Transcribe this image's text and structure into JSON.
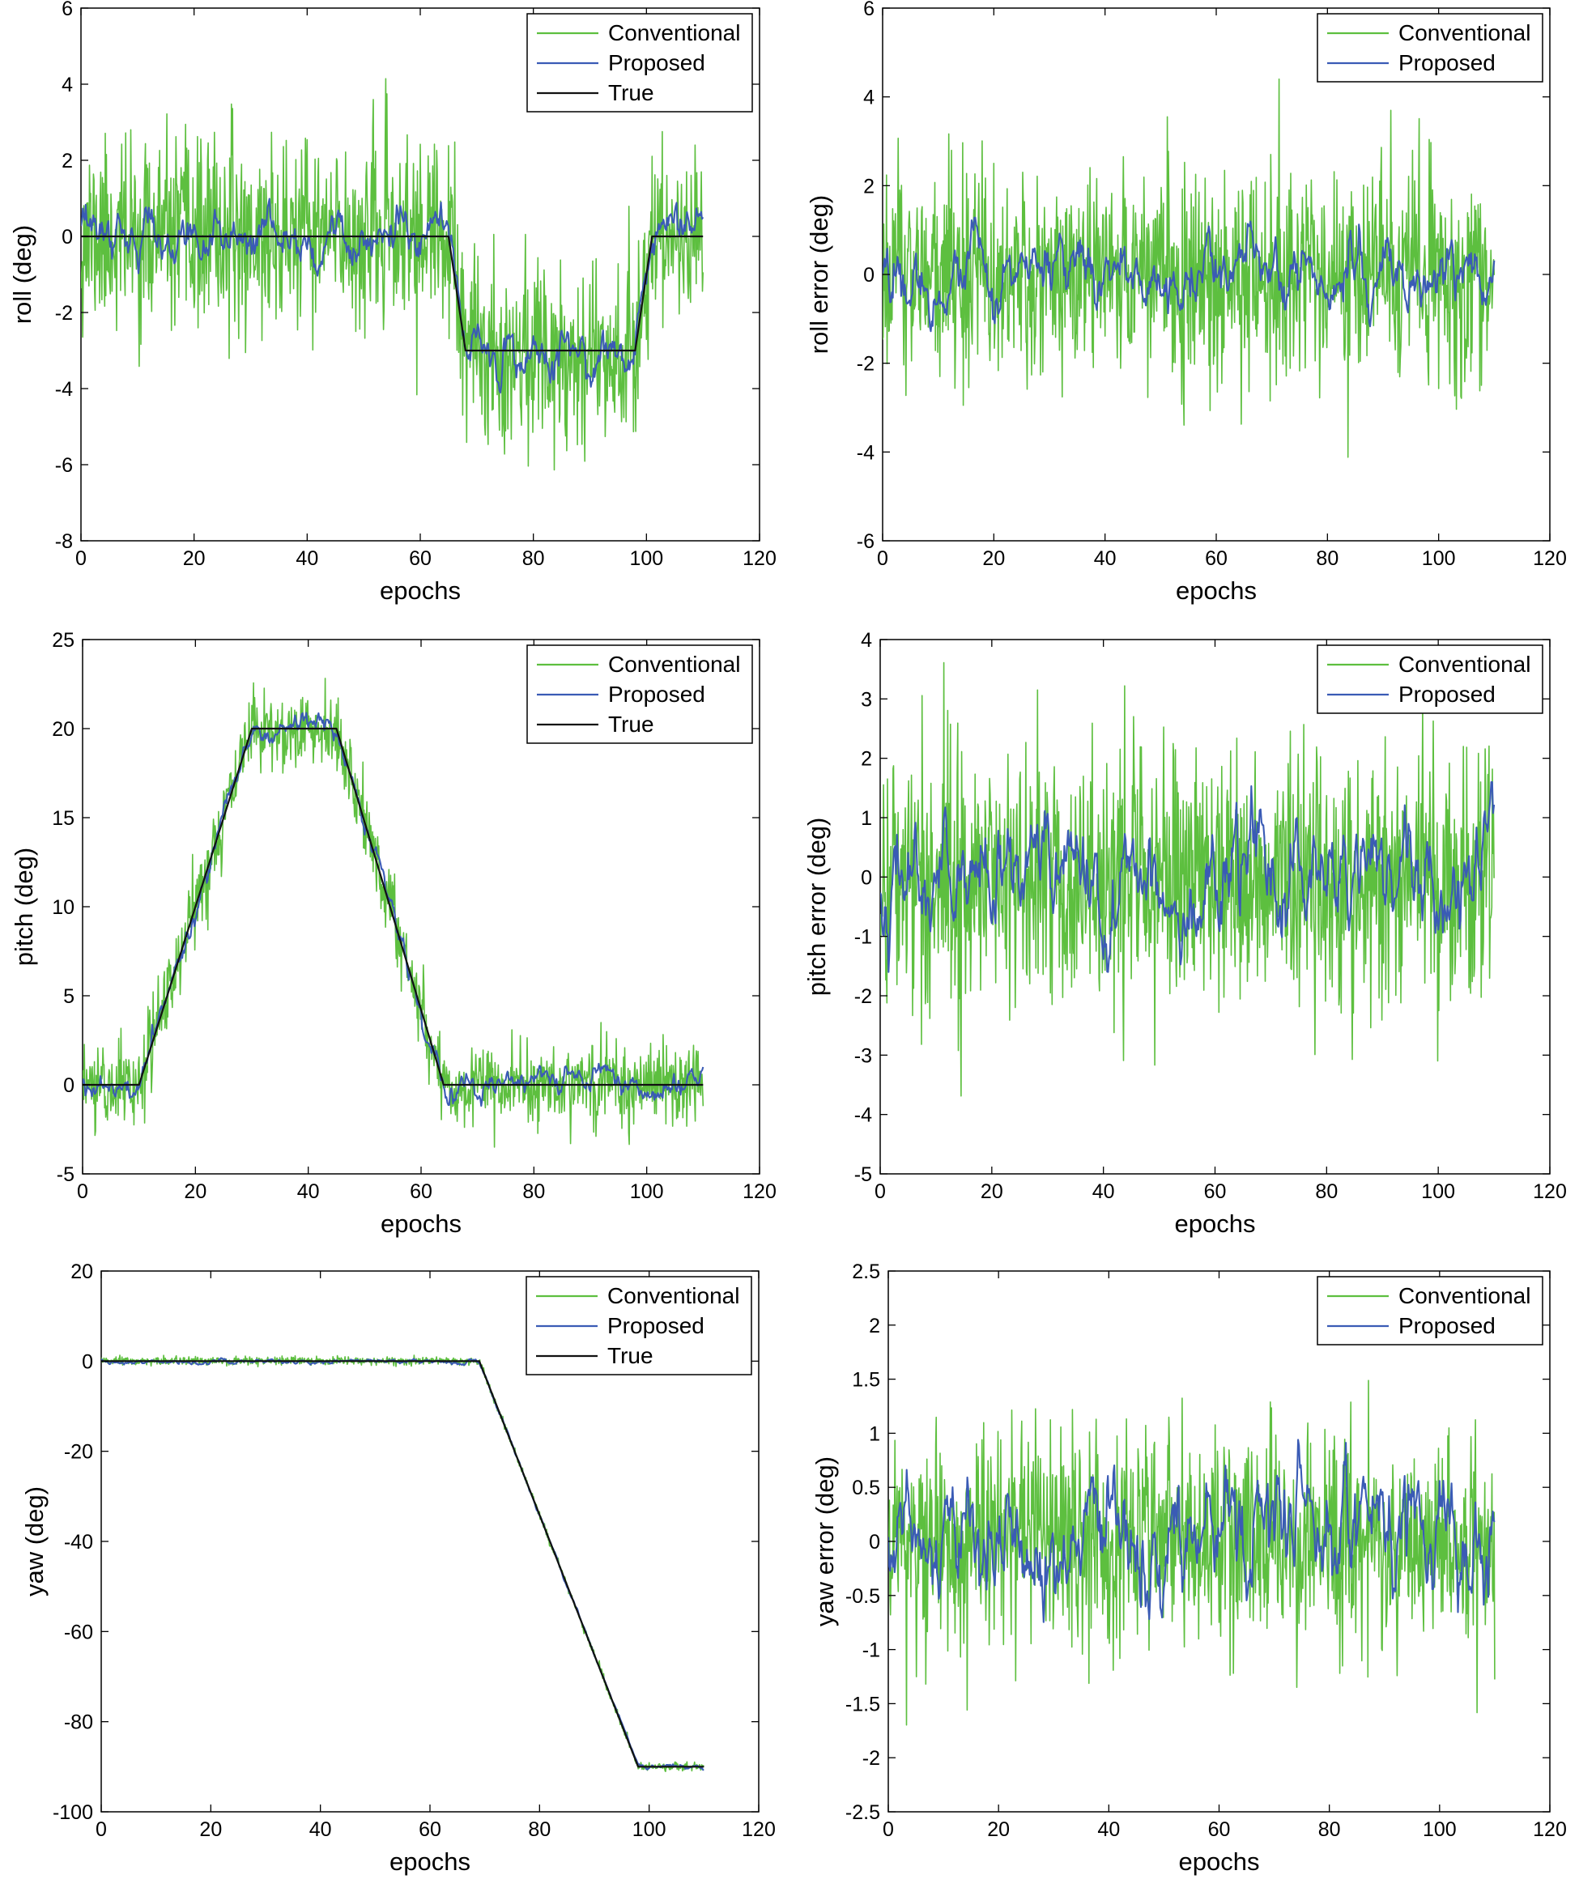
{
  "figure": {
    "colors": {
      "conventional": "#5dbf3f",
      "proposed": "#3a5bb5",
      "true": "#111111",
      "frame": "#000000"
    }
  },
  "chart_data": [
    {
      "id": "roll",
      "type": "line",
      "title": "",
      "xlabel": "epochs",
      "ylabel": "roll (deg)",
      "xlim": [
        0,
        120
      ],
      "ylim": [
        -8,
        6
      ],
      "xticks": [
        0,
        20,
        40,
        60,
        80,
        100,
        120
      ],
      "yticks": [
        -8,
        -6,
        -4,
        -2,
        0,
        2,
        4,
        6
      ],
      "legend": {
        "position": "top-right",
        "entries": [
          "Conventional",
          "Proposed",
          "True"
        ]
      },
      "series": [
        {
          "name": "Conventional",
          "kind": "noise",
          "sigma": 1.2,
          "amp": 4.2,
          "seed": 11
        },
        {
          "name": "Proposed",
          "kind": "smooth",
          "amp": 0.7,
          "seed": 12
        },
        {
          "name": "True",
          "kind": "truth",
          "points": [
            [
              0,
              0
            ],
            [
              65,
              0
            ],
            [
              68,
              -3
            ],
            [
              98,
              -3
            ],
            [
              101,
              0
            ],
            [
              110,
              0
            ]
          ]
        }
      ]
    },
    {
      "id": "roll-error",
      "type": "line",
      "title": "",
      "xlabel": "epochs",
      "ylabel": "roll error (deg)",
      "xlim": [
        0,
        120
      ],
      "ylim": [
        -6,
        6
      ],
      "xticks": [
        0,
        20,
        40,
        60,
        80,
        100,
        120
      ],
      "yticks": [
        -6,
        -4,
        -2,
        0,
        2,
        4,
        6
      ],
      "legend": {
        "position": "top-right",
        "entries": [
          "Conventional",
          "Proposed"
        ]
      },
      "series": [
        {
          "name": "Conventional",
          "kind": "noise",
          "sigma": 1.2,
          "amp": 4.4,
          "seed": 21
        },
        {
          "name": "Proposed",
          "kind": "smooth",
          "amp": 0.8,
          "seed": 22
        }
      ]
    },
    {
      "id": "pitch",
      "type": "line",
      "title": "",
      "xlabel": "epochs",
      "ylabel": "pitch (deg)",
      "xlim": [
        0,
        120
      ],
      "ylim": [
        -5,
        25
      ],
      "xticks": [
        0,
        20,
        40,
        60,
        80,
        100,
        120
      ],
      "yticks": [
        -5,
        0,
        5,
        10,
        15,
        20,
        25
      ],
      "legend": {
        "position": "top-right",
        "entries": [
          "Conventional",
          "Proposed",
          "True"
        ]
      },
      "series": [
        {
          "name": "Conventional",
          "kind": "noise",
          "sigma": 1.1,
          "amp": 3.5,
          "seed": 31
        },
        {
          "name": "Proposed",
          "kind": "smooth",
          "amp": 0.8,
          "seed": 32
        },
        {
          "name": "True",
          "kind": "truth",
          "points": [
            [
              0,
              0
            ],
            [
              10,
              0
            ],
            [
              30,
              20
            ],
            [
              45,
              20
            ],
            [
              64,
              0
            ],
            [
              110,
              0
            ]
          ]
        }
      ]
    },
    {
      "id": "pitch-error",
      "type": "line",
      "title": "",
      "xlabel": "epochs",
      "ylabel": "pitch error (deg)",
      "xlim": [
        0,
        120
      ],
      "ylim": [
        -5,
        4
      ],
      "xticks": [
        0,
        20,
        40,
        60,
        80,
        100,
        120
      ],
      "yticks": [
        -5,
        -4,
        -3,
        -2,
        -1,
        0,
        1,
        2,
        3,
        4
      ],
      "legend": {
        "position": "top-right",
        "entries": [
          "Conventional",
          "Proposed"
        ]
      },
      "series": [
        {
          "name": "Conventional",
          "kind": "noise",
          "sigma": 1.1,
          "amp": 4.5,
          "seed": 41
        },
        {
          "name": "Proposed",
          "kind": "smooth",
          "amp": 1.0,
          "seed": 42
        }
      ]
    },
    {
      "id": "yaw",
      "type": "line",
      "title": "",
      "xlabel": "epochs",
      "ylabel": "yaw (deg)",
      "xlim": [
        0,
        120
      ],
      "ylim": [
        -100,
        20
      ],
      "xticks": [
        0,
        20,
        40,
        60,
        80,
        100,
        120
      ],
      "yticks": [
        -100,
        -80,
        -60,
        -40,
        -20,
        0,
        20
      ],
      "legend": {
        "position": "top-right",
        "entries": [
          "Conventional",
          "Proposed",
          "True"
        ]
      },
      "series": [
        {
          "name": "Conventional",
          "kind": "noise",
          "sigma": 0.45,
          "amp": 2.2,
          "seed": 51
        },
        {
          "name": "Proposed",
          "kind": "smooth",
          "amp": 0.6,
          "seed": 52
        },
        {
          "name": "True",
          "kind": "truth",
          "points": [
            [
              0,
              0
            ],
            [
              69,
              0
            ],
            [
              98,
              -90
            ],
            [
              110,
              -90
            ]
          ]
        }
      ]
    },
    {
      "id": "yaw-error",
      "type": "line",
      "title": "",
      "xlabel": "epochs",
      "ylabel": "yaw error (deg)",
      "xlim": [
        0,
        120
      ],
      "ylim": [
        -2.5,
        2.5
      ],
      "xticks": [
        0,
        20,
        40,
        60,
        80,
        100,
        120
      ],
      "yticks": [
        -2.5,
        -2,
        -1.5,
        -1,
        -0.5,
        0,
        0.5,
        1,
        1.5,
        2,
        2.5
      ],
      "legend": {
        "position": "top-right",
        "entries": [
          "Conventional",
          "Proposed"
        ]
      },
      "series": [
        {
          "name": "Conventional",
          "kind": "noise",
          "sigma": 0.5,
          "amp": 2.25,
          "seed": 61
        },
        {
          "name": "Proposed",
          "kind": "smooth",
          "amp": 0.6,
          "seed": 62
        }
      ]
    }
  ]
}
